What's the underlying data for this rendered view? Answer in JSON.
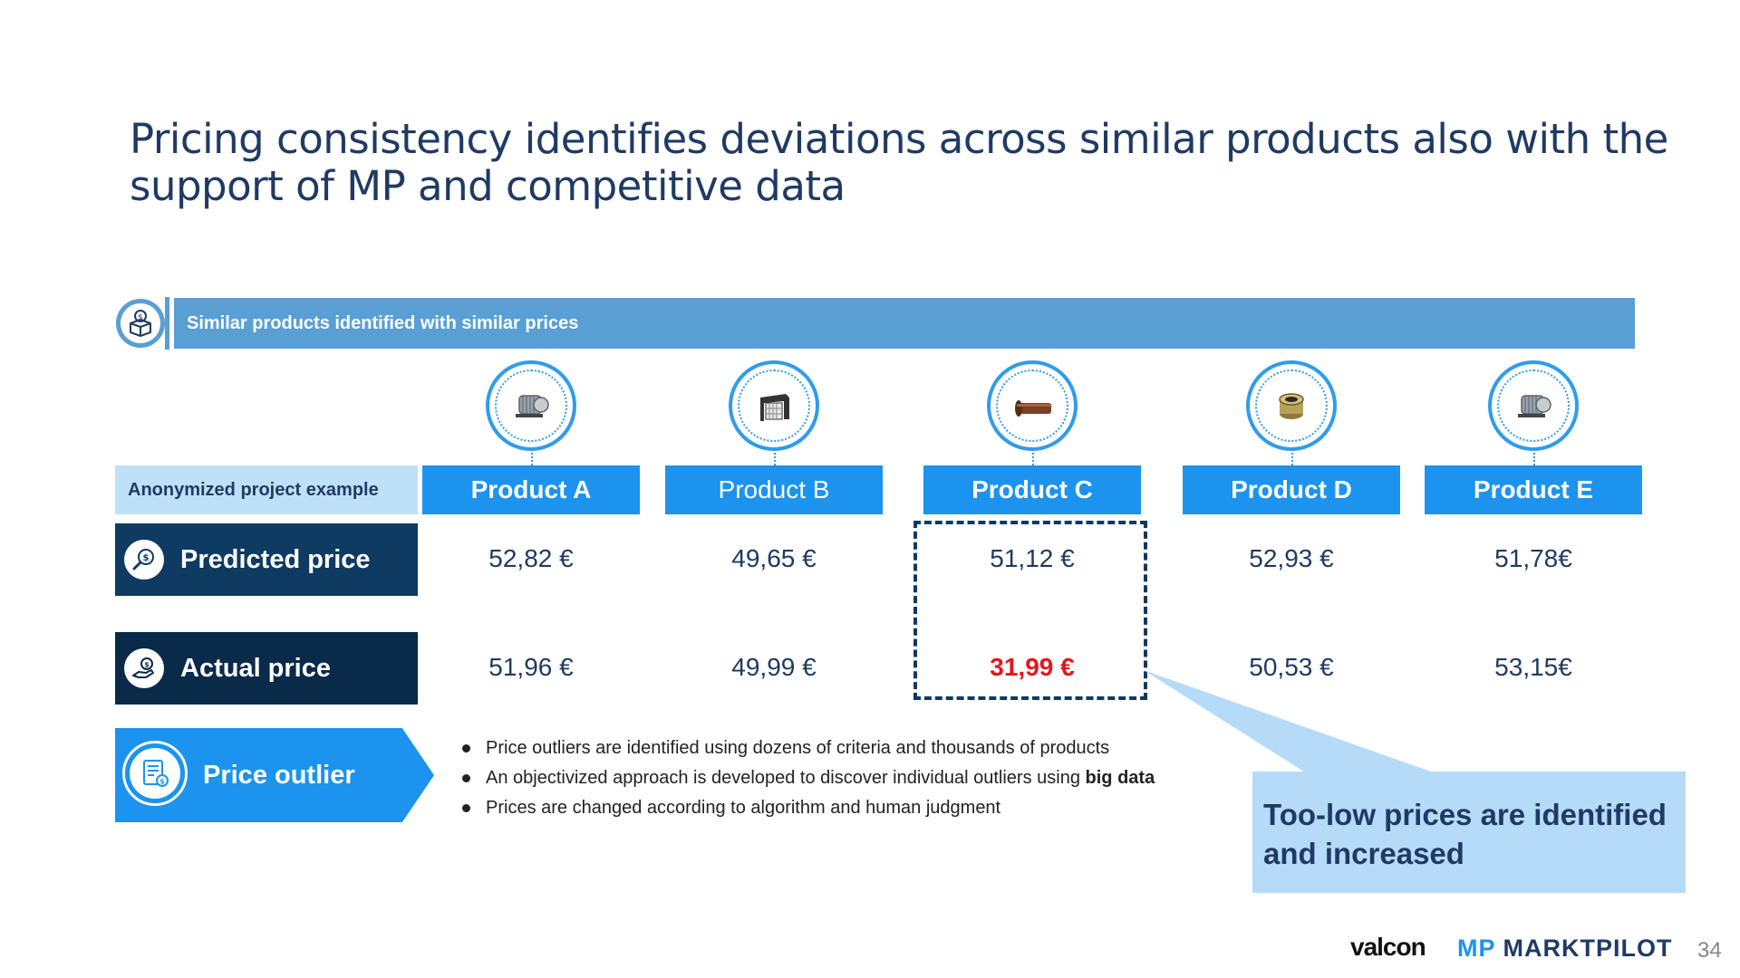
{
  "title": {
    "strong": "Pricing consistency",
    "rest": " identifies deviations across similar products also with the support of MP and competitive data"
  },
  "banner": {
    "text": "Similar products identified with similar prices",
    "icon": "money-box-icon"
  },
  "example_label": "Anonymized project example",
  "products": [
    {
      "name": "Product A",
      "predicted": "52,82 €",
      "actual": "51,96 €",
      "image": "electric-motor-image"
    },
    {
      "name": "Product B",
      "predicted": "49,65 €",
      "actual": "49,99 €",
      "image": "grill-filter-image"
    },
    {
      "name": "Product C",
      "predicted": "51,12 €",
      "actual": "31,99 €",
      "image": "copper-tube-image"
    },
    {
      "name": "Product D",
      "predicted": "52,93 €",
      "actual": "50,53 €",
      "image": "brass-ring-image"
    },
    {
      "name": "Product E",
      "predicted": "51,78€",
      "actual": "53,15€",
      "image": "electric-motor-image"
    }
  ],
  "rows": {
    "predicted_label": "Predicted price",
    "actual_label": "Actual price",
    "outlier_label": "Price outlier"
  },
  "bullets": [
    {
      "text": "Price outliers are identified using dozens of criteria and thousands of products",
      "bold": ""
    },
    {
      "text": "An objectivized approach is developed to discover individual outliers using ",
      "bold": "big data"
    },
    {
      "text": "Prices are changed according to algorithm and human judgment",
      "bold": ""
    }
  ],
  "callout": "Too-low prices are identified and increased",
  "colors": {
    "accent": "#1c93ef",
    "navy": "#0f3a61",
    "banner": "#5a9fd4",
    "outlier_red": "#e8151b"
  },
  "footer": {
    "logo_valcon": "valcon",
    "logo_mp_mark": "MP",
    "logo_mp_text": "MARKTPILOT",
    "page_number": "34"
  }
}
